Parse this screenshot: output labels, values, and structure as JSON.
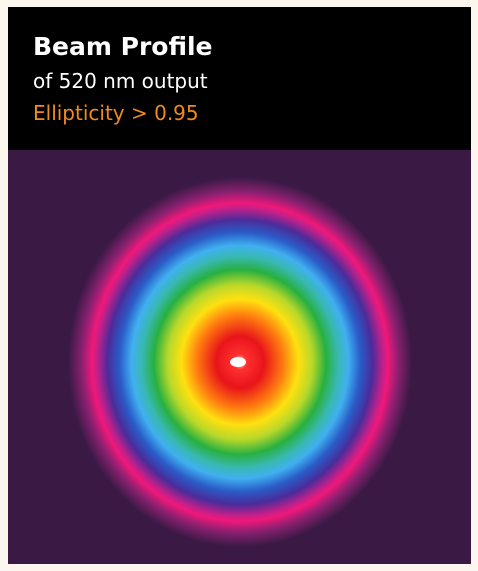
{
  "header": {
    "title": "Beam Profile",
    "subtitle": "of 520 nm output",
    "note": "Ellipticity > 0.95"
  }
}
